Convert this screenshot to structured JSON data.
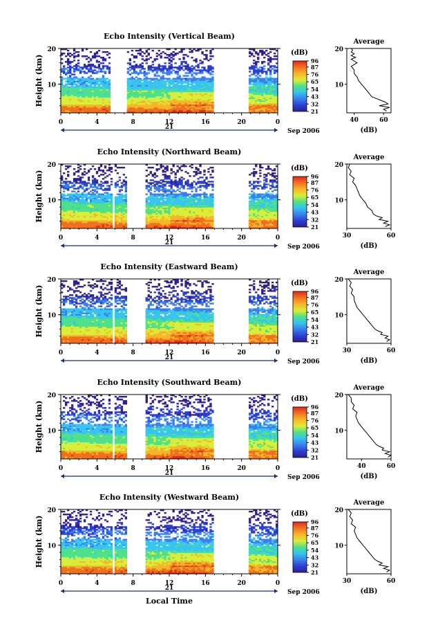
{
  "chart_data": [
    {
      "type": "heatmap",
      "title": "Echo Intensity (Vertical Beam)",
      "ylabel": "Height (km)",
      "x_ticks": [
        "0",
        "4",
        "8",
        "12",
        "16",
        "20",
        "0"
      ],
      "xlim": [
        0,
        24
      ],
      "y_ticks": [
        "20",
        "10"
      ],
      "ylim": [
        2,
        20
      ],
      "day_label": "21",
      "date_label": "Sep 2006",
      "colorbar": {
        "label": "(dB)",
        "ticks": [
          "96",
          "87",
          "76",
          "65",
          "54",
          "43",
          "32",
          "21"
        ],
        "range": [
          21,
          96
        ]
      },
      "data_gaps_hours": [
        [
          5.8,
          7.2
        ],
        [
          17.0,
          20.8
        ]
      ],
      "thin_gap_hour": 5.7,
      "profile": {
        "title": "Average",
        "xlabel": "(dB)",
        "x_ticks": [
          "40",
          "60"
        ],
        "xlim": [
          35,
          65
        ],
        "y_ticks": [
          "20",
          "10"
        ],
        "ylim": [
          2,
          20
        ],
        "height_km": [
          2.5,
          3.0,
          3.5,
          4.0,
          4.5,
          5.0,
          5.5,
          6.0,
          6.5,
          7.0,
          8.0,
          9.0,
          10.0,
          11.0,
          12.0,
          13.0,
          14.0,
          15.0,
          16.0,
          17.0,
          17.5,
          18.0,
          18.5,
          19.0,
          19.5,
          20.0
        ],
        "echo_db": [
          62,
          60,
          64,
          57,
          63,
          61,
          58,
          55,
          52,
          51,
          49,
          47,
          45,
          43,
          42,
          40,
          40,
          38,
          42,
          38,
          41,
          38,
          40,
          38,
          39,
          38
        ]
      }
    },
    {
      "type": "heatmap",
      "title": "Echo Intensity (Northward Beam)",
      "ylabel": "Height (km)",
      "x_ticks": [
        "0",
        "4",
        "8",
        "12",
        "16",
        "20",
        "0"
      ],
      "xlim": [
        0,
        24
      ],
      "y_ticks": [
        "20",
        "10"
      ],
      "ylim": [
        2,
        20
      ],
      "day_label": "21",
      "date_label": "Sep 2006",
      "colorbar": {
        "label": "(dB)",
        "ticks": [
          "96",
          "87",
          "76",
          "65",
          "54",
          "43",
          "32",
          "21"
        ],
        "range": [
          21,
          96
        ]
      },
      "data_gaps_hours": [
        [
          7.3,
          9.3
        ],
        [
          17.0,
          20.8
        ]
      ],
      "thin_gap_hour": 5.8,
      "profile": {
        "title": "Average",
        "xlabel": "(dB)",
        "x_ticks": [
          "30",
          "60"
        ],
        "xlim": [
          30,
          60
        ],
        "y_ticks": [
          "20",
          "10"
        ],
        "ylim": [
          2,
          20
        ],
        "height_km": [
          2.5,
          3.0,
          3.5,
          4.0,
          4.5,
          5.0,
          5.5,
          6.0,
          7.0,
          8.0,
          9.0,
          10.0,
          11.0,
          12.0,
          13.0,
          14.0,
          15.0,
          16.0,
          17.0,
          18.0,
          19.0,
          20.0
        ],
        "echo_db": [
          56,
          59,
          55,
          58,
          52,
          54,
          50,
          48,
          47,
          44,
          43,
          41,
          39,
          38,
          37,
          36,
          34,
          35,
          32,
          33,
          31,
          32
        ]
      }
    },
    {
      "type": "heatmap",
      "title": "Echo Intensity (Eastward Beam)",
      "ylabel": "Height (km)",
      "x_ticks": [
        "0",
        "4",
        "8",
        "12",
        "16",
        "20",
        "0"
      ],
      "xlim": [
        0,
        24
      ],
      "y_ticks": [
        "20",
        "10"
      ],
      "ylim": [
        2,
        20
      ],
      "day_label": "21",
      "date_label": "Sep 2006",
      "colorbar": {
        "label": "(dB)",
        "ticks": [
          "96",
          "87",
          "76",
          "65",
          "54",
          "43",
          "32",
          "21"
        ],
        "range": [
          21,
          96
        ]
      },
      "data_gaps_hours": [
        [
          7.3,
          9.3
        ],
        [
          17.0,
          20.8
        ]
      ],
      "thin_gap_hour": 5.8,
      "profile": {
        "title": "Average",
        "xlabel": "(dB)",
        "x_ticks": [
          "30",
          "60"
        ],
        "xlim": [
          30,
          60
        ],
        "y_ticks": [
          "20",
          "10"
        ],
        "ylim": [
          2,
          20
        ],
        "height_km": [
          2.5,
          3.0,
          3.5,
          4.0,
          4.5,
          5.0,
          5.5,
          6.0,
          7.0,
          8.0,
          9.0,
          10.0,
          11.0,
          12.0,
          13.0,
          14.0,
          15.0,
          16.0,
          17.0,
          18.0,
          19.0,
          20.0
        ],
        "echo_db": [
          57,
          59,
          56,
          58,
          53,
          54,
          51,
          49,
          47,
          45,
          43,
          41,
          39,
          37,
          36,
          35,
          35,
          33,
          34,
          32,
          33,
          31
        ]
      }
    },
    {
      "type": "heatmap",
      "title": "Echo Intensity (Southward Beam)",
      "ylabel": "Height (km)",
      "x_ticks": [
        "0",
        "4",
        "8",
        "12",
        "16",
        "20",
        "0"
      ],
      "xlim": [
        0,
        24
      ],
      "y_ticks": [
        "20",
        "10"
      ],
      "ylim": [
        2,
        20
      ],
      "day_label": "21",
      "date_label": "Sep 2006",
      "colorbar": {
        "label": "(dB)",
        "ticks": [
          "96",
          "87",
          "76",
          "65",
          "54",
          "43",
          "32",
          "21"
        ],
        "range": [
          21,
          96
        ]
      },
      "data_gaps_hours": [
        [
          7.3,
          9.3
        ],
        [
          17.0,
          20.8
        ]
      ],
      "thin_gap_hour": 5.8,
      "profile": {
        "title": "Average",
        "xlabel": "(dB)",
        "x_ticks": [
          "40",
          "60"
        ],
        "xlim": [
          30,
          60
        ],
        "y_ticks": [
          "20",
          "10"
        ],
        "ylim": [
          2,
          20
        ],
        "height_km": [
          2.5,
          3.0,
          3.5,
          4.0,
          4.5,
          5.0,
          5.5,
          6.0,
          7.0,
          8.0,
          9.0,
          10.0,
          11.0,
          12.0,
          13.0,
          14.0,
          15.0,
          16.0,
          17.0,
          18.0,
          19.0,
          20.0
        ],
        "echo_db": [
          58,
          60,
          56,
          59,
          54,
          55,
          52,
          50,
          48,
          46,
          44,
          42,
          40,
          38,
          37,
          36,
          37,
          34,
          35,
          33,
          33,
          31
        ]
      }
    },
    {
      "type": "heatmap",
      "title": "Echo Intensity (Westward Beam)",
      "ylabel": "Height (km)",
      "xlabel": "Local Time",
      "x_ticks": [
        "0",
        "4",
        "8",
        "12",
        "16",
        "20",
        "0"
      ],
      "xlim": [
        0,
        24
      ],
      "y_ticks": [
        "20",
        "10"
      ],
      "ylim": [
        2,
        20
      ],
      "day_label": "21",
      "date_label": "Sep 2006",
      "colorbar": {
        "label": "(dB)",
        "ticks": [
          "96",
          "87",
          "76",
          "65",
          "54",
          "43",
          "32",
          "21"
        ],
        "range": [
          21,
          96
        ]
      },
      "data_gaps_hours": [
        [
          7.3,
          9.3
        ],
        [
          17.0,
          20.8
        ]
      ],
      "thin_gap_hour": 5.8,
      "profile": {
        "title": "Average",
        "xlabel": "(dB)",
        "x_ticks": [
          "30",
          "60"
        ],
        "xlim": [
          30,
          60
        ],
        "y_ticks": [
          "20",
          "10"
        ],
        "ylim": [
          2,
          20
        ],
        "height_km": [
          2.5,
          3.0,
          3.5,
          4.0,
          4.5,
          5.0,
          5.5,
          6.0,
          7.0,
          8.0,
          9.0,
          10.0,
          11.0,
          12.0,
          13.0,
          14.0,
          15.0,
          16.0,
          17.0,
          18.0,
          19.0,
          20.0
        ],
        "echo_db": [
          57,
          59,
          55,
          58,
          52,
          54,
          51,
          49,
          47,
          45,
          43,
          41,
          39,
          37,
          36,
          35,
          36,
          33,
          34,
          32,
          33,
          31
        ]
      }
    }
  ],
  "colors": {
    "colormap": [
      "#2f1f8f",
      "#2a3fd0",
      "#3a7fee",
      "#36c4f0",
      "#4fe08a",
      "#d8ee3a",
      "#f8b528",
      "#f07020",
      "#e02818"
    ],
    "axis": "#000000",
    "time_axis": "#1e2a7a"
  }
}
